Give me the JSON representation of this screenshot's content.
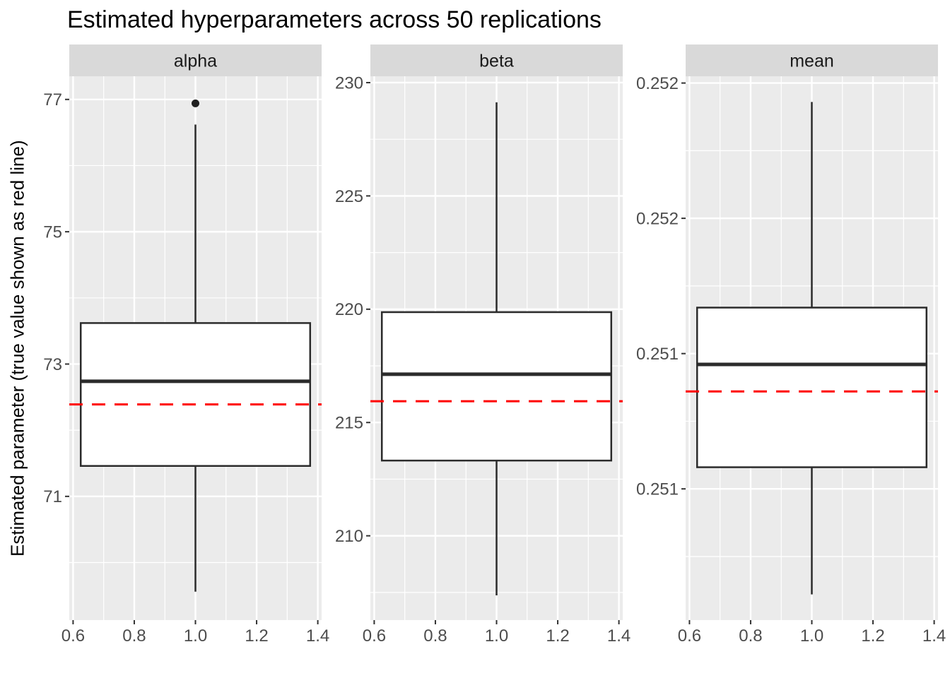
{
  "figure": {
    "title": "Estimated hyperparameters across 50 replications",
    "y_axis_title": "Estimated parameter (true value shown as red line)"
  },
  "colors": {
    "true_value_line": "#FF0000",
    "panel_background": "#EBEBEB",
    "strip_background": "#D9D9D9",
    "gridline": "#FFFFFF",
    "box_stroke": "#2B2B2B",
    "box_fill": "#FFFFFF",
    "axis_text": "#4D4D4D",
    "tick_mark": "#333333",
    "strip_text": "#1A1A1A",
    "title_text": "#000000",
    "outlier_fill": "#1F1F1F"
  },
  "chart_data": {
    "type": "boxplot",
    "title": "Estimated hyperparameters across 50 replications",
    "ylabel": "Estimated parameter (true value shown as red line)",
    "xlabel": "",
    "legend": "none",
    "grid": "white major and minor gridlines on grey panels",
    "replications": 50,
    "x_axis": {
      "range": [
        0.5875,
        1.4125
      ],
      "ticks": [
        0.6,
        0.8,
        1.0,
        1.2,
        1.4
      ],
      "tick_labels": [
        "0.6",
        "0.8",
        "1.0",
        "1.2",
        "1.4"
      ],
      "minor_ticks": [
        0.7,
        0.9,
        1.1,
        1.3
      ]
    },
    "facets": [
      {
        "label": "alpha",
        "y_axis": {
          "range": [
            69.13,
            77.35
          ],
          "ticks": [
            {
              "value": 77,
              "label": "77"
            },
            {
              "value": 75,
              "label": "75"
            },
            {
              "value": 73,
              "label": "73"
            },
            {
              "value": 71,
              "label": "71"
            }
          ],
          "minor_ticks": [
            76,
            74,
            72,
            70
          ]
        },
        "box": {
          "x_center": 1.0,
          "x_left": 0.625,
          "x_right": 1.375,
          "whisker_low": 69.56,
          "q1": 71.46,
          "median": 72.74,
          "q3": 73.62,
          "whisker_high": 76.62
        },
        "outliers": [
          {
            "x": 1.0,
            "y": 76.94
          }
        ],
        "true_value": 72.39
      },
      {
        "label": "beta",
        "y_axis": {
          "range": [
            206.28,
            230.28
          ],
          "ticks": [
            {
              "value": 230,
              "label": "230"
            },
            {
              "value": 225,
              "label": "225"
            },
            {
              "value": 220,
              "label": "220"
            },
            {
              "value": 215,
              "label": "215"
            },
            {
              "value": 210,
              "label": "210"
            }
          ],
          "minor_ticks": [
            227.5,
            222.5,
            217.5,
            212.5,
            207.5
          ]
        },
        "box": {
          "x_center": 1.0,
          "x_left": 0.625,
          "x_right": 1.375,
          "whisker_low": 207.37,
          "q1": 213.32,
          "median": 217.13,
          "q3": 219.87,
          "whisker_high": 229.13
        },
        "outliers": [],
        "true_value": 215.94
      },
      {
        "label": "mean",
        "y_axis": {
          "range": [
            0.250015,
            0.252025
          ],
          "ticks": [
            {
              "value": 0.252,
              "label": "0.252"
            },
            {
              "value": 0.2515,
              "label": "0.252"
            },
            {
              "value": 0.251,
              "label": "0.251"
            },
            {
              "value": 0.2505,
              "label": "0.251"
            }
          ],
          "minor_ticks": [
            0.25175,
            0.25125,
            0.25075,
            0.25025
          ]
        },
        "box": {
          "x_center": 1.0,
          "x_left": 0.625,
          "x_right": 1.375,
          "whisker_low": 0.25011,
          "q1": 0.25058,
          "median": 0.25096,
          "q3": 0.25117,
          "whisker_high": 0.25193
        },
        "outliers": [],
        "true_value": 0.25086
      }
    ]
  }
}
